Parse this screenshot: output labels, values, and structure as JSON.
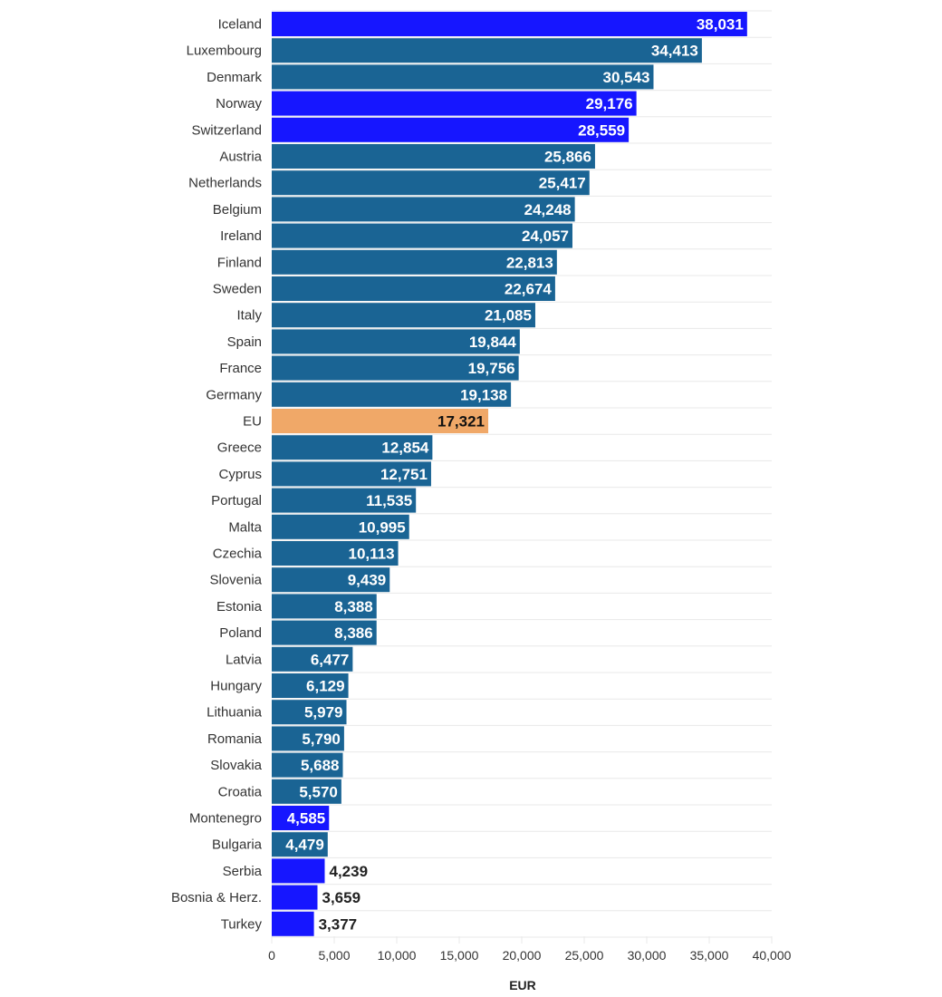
{
  "chart_data": {
    "type": "bar",
    "orientation": "horizontal",
    "title": "",
    "xlabel": "EUR",
    "ylabel": "",
    "xlim": [
      0,
      40000
    ],
    "x_ticks": [
      0,
      5000,
      10000,
      15000,
      20000,
      25000,
      30000,
      35000,
      40000
    ],
    "x_tick_labels": [
      "0",
      "5,000",
      "10,000",
      "15,000",
      "20,000",
      "25,000",
      "30,000",
      "35,000",
      "40,000"
    ],
    "grid": true,
    "legend": "none",
    "colors": {
      "eu_member": "#1a6494",
      "non_eu": "#1616ff",
      "eu_average": "#f0a868"
    },
    "categories": [
      "Iceland",
      "Luxembourg",
      "Denmark",
      "Norway",
      "Switzerland",
      "Austria",
      "Netherlands",
      "Belgium",
      "Ireland",
      "Finland",
      "Sweden",
      "Italy",
      "Spain",
      "France",
      "Germany",
      "EU",
      "Greece",
      "Cyprus",
      "Portugal",
      "Malta",
      "Czechia",
      "Slovenia",
      "Estonia",
      "Poland",
      "Latvia",
      "Hungary",
      "Lithuania",
      "Romania",
      "Slovakia",
      "Croatia",
      "Montenegro",
      "Bulgaria",
      "Serbia",
      "Bosnia & Herz.",
      "Turkey"
    ],
    "values": [
      38031,
      34413,
      30543,
      29176,
      28559,
      25866,
      25417,
      24248,
      24057,
      22813,
      22674,
      21085,
      19844,
      19756,
      19138,
      17321,
      12854,
      12751,
      11535,
      10995,
      10113,
      9439,
      8388,
      8386,
      6477,
      6129,
      5979,
      5790,
      5688,
      5570,
      4585,
      4479,
      4239,
      3659,
      3377
    ],
    "value_labels": [
      "38,031",
      "34,413",
      "30,543",
      "29,176",
      "28,559",
      "25,866",
      "25,417",
      "24,248",
      "24,057",
      "22,813",
      "22,674",
      "21,085",
      "19,844",
      "19,756",
      "19,138",
      "17,321",
      "12,854",
      "12,751",
      "11,535",
      "10,995",
      "10,113",
      "9,439",
      "8,388",
      "8,386",
      "6,477",
      "6,129",
      "5,979",
      "5,790",
      "5,688",
      "5,570",
      "4,585",
      "4,479",
      "4,239",
      "3,659",
      "3,377"
    ],
    "groups": [
      "non_eu",
      "eu_member",
      "eu_member",
      "non_eu",
      "non_eu",
      "eu_member",
      "eu_member",
      "eu_member",
      "eu_member",
      "eu_member",
      "eu_member",
      "eu_member",
      "eu_member",
      "eu_member",
      "eu_member",
      "eu_average",
      "eu_member",
      "eu_member",
      "eu_member",
      "eu_member",
      "eu_member",
      "eu_member",
      "eu_member",
      "eu_member",
      "eu_member",
      "eu_member",
      "eu_member",
      "eu_member",
      "eu_member",
      "eu_member",
      "non_eu",
      "eu_member",
      "non_eu",
      "non_eu",
      "non_eu"
    ]
  }
}
